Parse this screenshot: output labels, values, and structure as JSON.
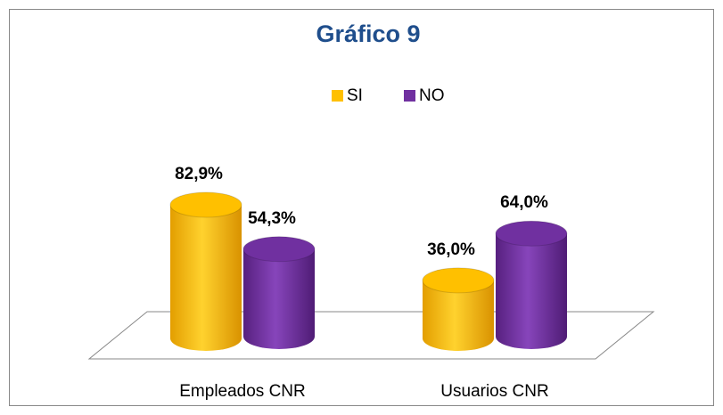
{
  "chart_data": {
    "type": "bar3d",
    "title": "Gráfico 9",
    "categories": [
      "Empleados CNR",
      "Usuarios CNR"
    ],
    "series": [
      {
        "name": "SI",
        "color": "#ffc000",
        "values": [
          82.9,
          36.0
        ],
        "value_labels": [
          "82,9%",
          "36,0%"
        ]
      },
      {
        "name": "NO",
        "color": "#7030a0",
        "values": [
          54.3,
          64.0
        ],
        "value_labels": [
          "54,3%",
          "64,0%"
        ]
      }
    ]
  }
}
